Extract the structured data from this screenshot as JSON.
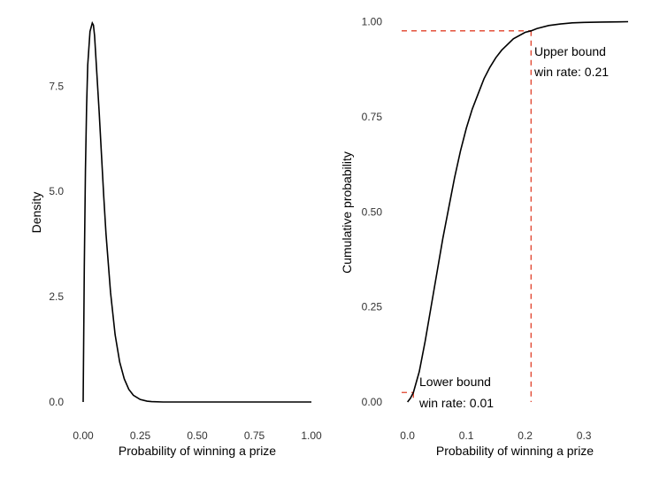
{
  "chart_data": [
    {
      "type": "line",
      "xlabel": "Probability of winning a prize",
      "ylabel": "Density",
      "xlim": [
        0,
        1
      ],
      "ylim": [
        0,
        9
      ],
      "x_ticks": [
        {
          "value": 0.0,
          "label": "0.00"
        },
        {
          "value": 0.25,
          "label": "0.25"
        },
        {
          "value": 0.5,
          "label": "0.50"
        },
        {
          "value": 0.75,
          "label": "0.75"
        },
        {
          "value": 1.0,
          "label": "1.00"
        }
      ],
      "y_ticks": [
        {
          "value": 0.0,
          "label": "0.0"
        },
        {
          "value": 2.5,
          "label": "2.5"
        },
        {
          "value": 5.0,
          "label": "5.0"
        },
        {
          "value": 7.5,
          "label": "7.5"
        }
      ],
      "grid": false,
      "series": [
        {
          "x": [
            0.0,
            0.005,
            0.01,
            0.015,
            0.02,
            0.03,
            0.04,
            0.045,
            0.05,
            0.06,
            0.07,
            0.08,
            0.09,
            0.1,
            0.12,
            0.14,
            0.16,
            0.18,
            0.2,
            0.22,
            0.25,
            0.28,
            0.3,
            0.35,
            0.4,
            0.5,
            0.6,
            0.7,
            0.8,
            0.9,
            1.0
          ],
          "y": [
            0.0,
            3.2,
            5.5,
            7.0,
            8.0,
            8.8,
            9.0,
            8.95,
            8.7,
            7.8,
            6.9,
            5.9,
            4.9,
            4.0,
            2.6,
            1.6,
            0.95,
            0.55,
            0.3,
            0.16,
            0.06,
            0.02,
            0.01,
            0.0,
            0.0,
            0.0,
            0.0,
            0.0,
            0.0,
            0.0,
            0.0
          ]
        }
      ]
    },
    {
      "type": "line",
      "xlabel": "Probability of winning a prize",
      "ylabel": "Cumulative probability",
      "xlim": [
        -0.01,
        0.375
      ],
      "ylim": [
        0,
        1.0
      ],
      "x_ticks": [
        {
          "value": 0.0,
          "label": "0.0"
        },
        {
          "value": 0.1,
          "label": "0.1"
        },
        {
          "value": 0.2,
          "label": "0.2"
        },
        {
          "value": 0.3,
          "label": "0.3"
        }
      ],
      "y_ticks": [
        {
          "value": 0.0,
          "label": "0.00"
        },
        {
          "value": 0.25,
          "label": "0.25"
        },
        {
          "value": 0.5,
          "label": "0.50"
        },
        {
          "value": 0.75,
          "label": "0.75"
        },
        {
          "value": 1.0,
          "label": "1.00"
        }
      ],
      "grid": false,
      "series": [
        {
          "x": [
            0.0,
            0.005,
            0.01,
            0.02,
            0.03,
            0.04,
            0.05,
            0.06,
            0.07,
            0.08,
            0.09,
            0.1,
            0.11,
            0.12,
            0.13,
            0.14,
            0.15,
            0.16,
            0.18,
            0.2,
            0.21,
            0.22,
            0.24,
            0.26,
            0.28,
            0.3,
            0.33,
            0.36,
            0.375
          ],
          "y": [
            0.0,
            0.01,
            0.025,
            0.08,
            0.16,
            0.25,
            0.34,
            0.43,
            0.51,
            0.59,
            0.66,
            0.72,
            0.77,
            0.81,
            0.85,
            0.88,
            0.905,
            0.925,
            0.955,
            0.972,
            0.976,
            0.982,
            0.99,
            0.994,
            0.997,
            0.998,
            0.999,
            0.9995,
            1.0
          ]
        }
      ],
      "reference_lines": [
        {
          "x": 0.01,
          "y": 0.025
        },
        {
          "x": 0.21,
          "y": 0.976
        }
      ],
      "annotations": [
        {
          "lines": [
            "Upper bound",
            "win rate: 0.21"
          ]
        },
        {
          "lines": [
            "Lower bound",
            "win rate: 0.01"
          ]
        }
      ],
      "ref_color": "#e0402a"
    }
  ]
}
